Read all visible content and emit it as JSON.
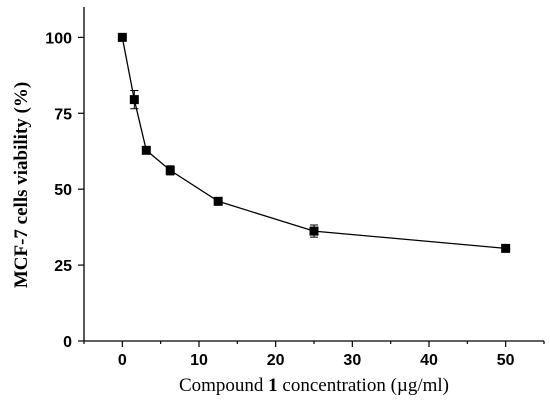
{
  "chart_data": {
    "type": "scatter",
    "title": "",
    "ylabel": "MCF-7 cells viability (%)",
    "xlabel_parts": [
      "Compound ",
      "1",
      " concentration (µg/ml)"
    ],
    "xlim": [
      -5,
      55
    ],
    "ylim": [
      0,
      110
    ],
    "xticks": [
      0,
      10,
      20,
      30,
      40,
      50
    ],
    "yticks": [
      0,
      25,
      50,
      75,
      100
    ],
    "grid": false,
    "series": [
      {
        "x": [
          0,
          1.5625,
          3.125,
          6.25,
          12.5,
          25,
          50
        ],
        "y": [
          100,
          79.5,
          62.8,
          56.2,
          46.0,
          36.2,
          30.5
        ],
        "yerr": [
          0,
          3.0,
          0.8,
          1.5,
          0.6,
          2.0,
          0.6
        ]
      }
    ]
  }
}
